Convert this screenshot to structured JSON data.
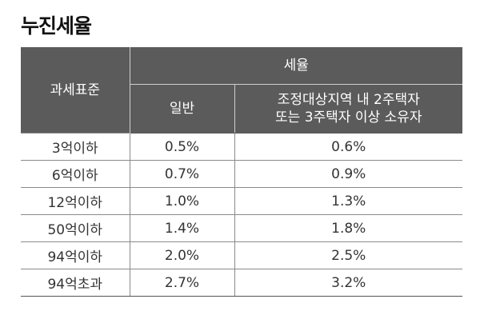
{
  "title": "누진세율",
  "table": {
    "header": {
      "tax_base": "과세표준",
      "tax_rate": "세율",
      "general": "일반",
      "special_line1": "조정대상지역 내 2주택자",
      "special_line2": "또는 3주택자 이상 소유자"
    },
    "rows": [
      {
        "base": "3억이하",
        "general": "0.5%",
        "special": "0.6%"
      },
      {
        "base": "6억이하",
        "general": "0.7%",
        "special": "0.9%"
      },
      {
        "base": "12억이하",
        "general": "1.0%",
        "special": "1.3%"
      },
      {
        "base": "50억이하",
        "general": "1.4%",
        "special": "1.8%"
      },
      {
        "base": "94억이하",
        "general": "2.0%",
        "special": "2.5%"
      },
      {
        "base": "94억초과",
        "general": "2.7%",
        "special": "3.2%"
      }
    ]
  }
}
